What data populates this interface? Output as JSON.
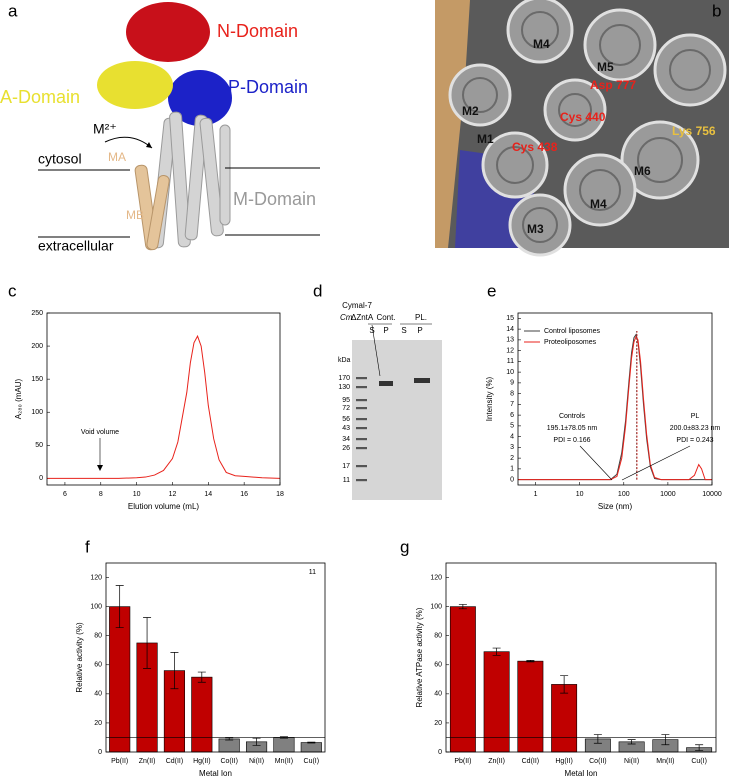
{
  "panel_a": {
    "label": "a",
    "n_domain": "N-Domain",
    "p_domain": "P-Domain",
    "a_domain": "A-Domain",
    "ion": "M²⁺",
    "cytosol": "cytosol",
    "extracellular": "extracellular",
    "ma": "MA",
    "mb": "MB",
    "m_domain": "M-Domain"
  },
  "panel_b": {
    "label": "b",
    "labels": [
      "M4",
      "M5",
      "Asp 777",
      "M2",
      "Cys 440",
      "Lys 756",
      "M1",
      "Cys 438",
      "M6",
      "M4",
      "M3"
    ]
  },
  "panel_d": {
    "label": "d",
    "detergent": "Cymal-7",
    "protein_italic": "Cm",
    "protein": "ΔZntA",
    "control": "Cont.",
    "pl": "PL.",
    "lanes": [
      "S",
      "P",
      "S",
      "P"
    ],
    "unit": "kDa",
    "ladder": [
      "170",
      "130",
      "95",
      "72",
      "56",
      "43",
      "34",
      "26",
      "17",
      "11"
    ]
  },
  "chart_data": [
    {
      "type": "line",
      "panel_label": "c",
      "xlabel": "Elution volume (mL)",
      "ylabel": "A₂₈₀ (mAU)",
      "xlim": [
        5,
        18
      ],
      "xticks": [
        6,
        8,
        10,
        12,
        14,
        16,
        18
      ],
      "ylim": [
        -10,
        250
      ],
      "yticks": [
        0,
        50,
        100,
        150,
        200,
        250
      ],
      "x": [
        5,
        6,
        7,
        8,
        9,
        10,
        10.5,
        11,
        11.5,
        12,
        12.3,
        12.6,
        12.8,
        13,
        13.2,
        13.4,
        13.6,
        13.8,
        14,
        14.3,
        14.6,
        15,
        15.5,
        16,
        17,
        18
      ],
      "series": [
        {
          "name": "A280",
          "color": "#e8221b",
          "values": [
            0,
            0,
            0,
            0,
            0,
            1,
            2,
            5,
            12,
            30,
            55,
            100,
            130,
            175,
            205,
            215,
            200,
            160,
            110,
            60,
            28,
            9,
            4,
            3,
            1,
            0
          ]
        }
      ],
      "annotations": [
        "Void volume"
      ]
    },
    {
      "type": "line",
      "panel_label": "e",
      "xlabel": "Size (nm)",
      "ylabel": "Intensity (%)",
      "xscale": "log",
      "xlim": [
        0.4,
        10000
      ],
      "xticks": [
        1,
        10,
        100,
        1000,
        10000
      ],
      "ylim": [
        -0.5,
        15.5
      ],
      "yticks": [
        0,
        1,
        2,
        3,
        4,
        5,
        6,
        7,
        8,
        9,
        10,
        11,
        12,
        13,
        14,
        15
      ],
      "x": [
        0.4,
        50,
        70,
        90,
        110,
        130,
        150,
        170,
        190,
        210,
        240,
        280,
        330,
        400,
        500,
        700,
        3000,
        4000,
        5000,
        5800,
        7000,
        10000
      ],
      "series": [
        {
          "name": "Control liposomes",
          "color": "#404040",
          "values": [
            0,
            0,
            0.5,
            2.5,
            5.5,
            9,
            11.8,
            13.2,
            13.5,
            12.8,
            10.5,
            7,
            3.8,
            1.2,
            0.1,
            0,
            0,
            0,
            0,
            0,
            0,
            0
          ]
        },
        {
          "name": "Proteoliposomes",
          "color": "#e8221b",
          "values": [
            0,
            0,
            0.3,
            2,
            5,
            8.5,
            11.3,
            12.8,
            13.3,
            13,
            11,
            7.5,
            4.2,
            1.4,
            0.2,
            0,
            0,
            0.4,
            1.4,
            1,
            0,
            0
          ]
        }
      ],
      "vlines": [
        {
          "x": 195.1,
          "color": "#404040"
        },
        {
          "x": 200.0,
          "color": "#e8221b"
        }
      ],
      "legend": "upper left",
      "annotations": [
        "Controls",
        "195.1±78.05 nm",
        "PDI = 0.166",
        "PL",
        "200.0±83.23 nm",
        "PDI = 0.243"
      ]
    },
    {
      "type": "bar",
      "panel_label": "f",
      "xlabel": "Metal Ion",
      "ylabel": "Relative activity (%)",
      "categories": [
        "Pb(II)",
        "Zn(II)",
        "Cd(II)",
        "Hg(II)",
        "Co(II)",
        "Ni(II)",
        "Mn(II)",
        "Cu(I)"
      ],
      "values": [
        100,
        75,
        56,
        51.5,
        9,
        7,
        10,
        6.5
      ],
      "errors": [
        14.5,
        17.5,
        12.5,
        3.5,
        0.8,
        2.5,
        0.5,
        0.3
      ],
      "colors": [
        "#c00000",
        "#c00000",
        "#c00000",
        "#c00000",
        "#808080",
        "#808080",
        "#808080",
        "#808080"
      ],
      "ylim": [
        0,
        130
      ],
      "yticks": [
        0,
        20,
        40,
        60,
        80,
        100,
        120
      ],
      "hline": 10,
      "annotations": [
        "11"
      ]
    },
    {
      "type": "bar",
      "panel_label": "g",
      "xlabel": "Metal Ion",
      "ylabel": "Relative ATPase activity (%)",
      "categories": [
        "Pb(II)",
        "Zn(II)",
        "Cd(II)",
        "Hg(II)",
        "Co(II)",
        "Ni(II)",
        "Mn(II)",
        "Cu(I)"
      ],
      "values": [
        100,
        69,
        62.5,
        46.5,
        9,
        7,
        8.5,
        3
      ],
      "errors": [
        1.5,
        2.5,
        0.5,
        6,
        3,
        1.5,
        3.5,
        2
      ],
      "colors": [
        "#c00000",
        "#c00000",
        "#c00000",
        "#c00000",
        "#808080",
        "#808080",
        "#808080",
        "#808080"
      ],
      "ylim": [
        0,
        130
      ],
      "yticks": [
        0,
        20,
        40,
        60,
        80,
        100,
        120
      ],
      "hline": 10
    }
  ]
}
